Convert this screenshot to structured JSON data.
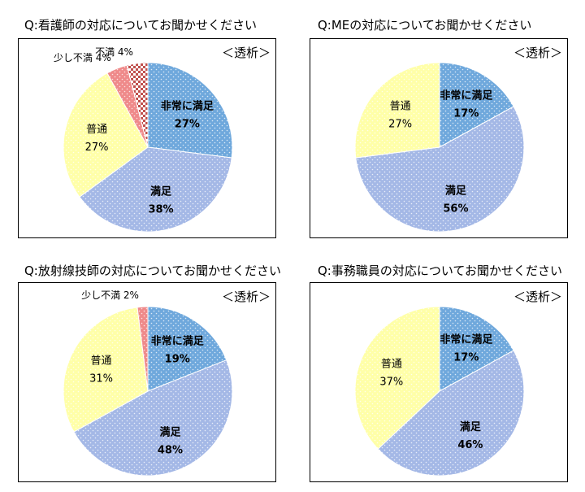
{
  "chart_data": [
    {
      "type": "pie",
      "title": "Q:看護師の対応についてお聞かせください",
      "annotation": "＜透析＞",
      "slices": [
        {
          "label": "非常に満足",
          "value": 27,
          "value_label": "27%",
          "color": "#6fa8dc",
          "pattern": "dots",
          "label_bold": true
        },
        {
          "label": "満足",
          "value": 38,
          "value_label": "38%",
          "color": "#a4b8e6",
          "pattern": "dots",
          "label_bold": true
        },
        {
          "label": "普通",
          "value": 27,
          "value_label": "27%",
          "color": "#ffffa8",
          "pattern": "dots",
          "label_bold": false
        },
        {
          "label": "少し不満",
          "value": 4,
          "value_label": "4%",
          "color": "#ef8a8a",
          "pattern": "dots",
          "label_bold": false
        },
        {
          "label": "不満",
          "value": 4,
          "value_label": "4%",
          "color": "#c0504d",
          "pattern": "check",
          "label_bold": false
        }
      ]
    },
    {
      "type": "pie",
      "title": "Q:MEの対応についてお聞かせください",
      "annotation": "＜透析＞",
      "slices": [
        {
          "label": "非常に満足",
          "value": 17,
          "value_label": "17%",
          "color": "#6fa8dc",
          "pattern": "dots",
          "label_bold": true
        },
        {
          "label": "満足",
          "value": 56,
          "value_label": "56%",
          "color": "#a4b8e6",
          "pattern": "dots",
          "label_bold": true
        },
        {
          "label": "普通",
          "value": 27,
          "value_label": "27%",
          "color": "#ffffa8",
          "pattern": "dots",
          "label_bold": false
        }
      ]
    },
    {
      "type": "pie",
      "title": "Q:放射線技師の対応についてお聞かせください",
      "annotation": "＜透析＞",
      "slices": [
        {
          "label": "非常に満足",
          "value": 19,
          "value_label": "19%",
          "color": "#6fa8dc",
          "pattern": "dots",
          "label_bold": true
        },
        {
          "label": "満足",
          "value": 48,
          "value_label": "48%",
          "color": "#a4b8e6",
          "pattern": "dots",
          "label_bold": true
        },
        {
          "label": "普通",
          "value": 31,
          "value_label": "31%",
          "color": "#ffffa8",
          "pattern": "dots",
          "label_bold": false
        },
        {
          "label": "少し不満",
          "value": 2,
          "value_label": "2%",
          "color": "#ef8a8a",
          "pattern": "dots",
          "label_bold": false
        }
      ]
    },
    {
      "type": "pie",
      "title": "Q:事務職員の対応についてお聞かせください",
      "annotation": "＜透析＞",
      "slices": [
        {
          "label": "非常に満足",
          "value": 17,
          "value_label": "17%",
          "color": "#6fa8dc",
          "pattern": "dots",
          "label_bold": true
        },
        {
          "label": "満足",
          "value": 46,
          "value_label": "46%",
          "color": "#a4b8e6",
          "pattern": "dots",
          "label_bold": true
        },
        {
          "label": "普通",
          "value": 37,
          "value_label": "37%",
          "color": "#ffffa8",
          "pattern": "dots",
          "label_bold": false
        }
      ]
    }
  ]
}
